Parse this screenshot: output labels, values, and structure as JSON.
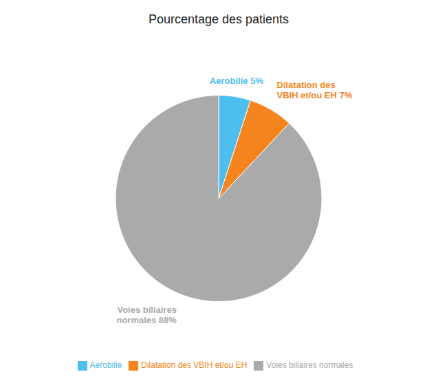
{
  "chart_data": {
    "type": "pie",
    "title": "Pourcentage des patients",
    "categories": [
      "Aerobilie",
      "Dilatation des VBIH et/ou EH",
      "Voies biliaires normales"
    ],
    "values": [
      5,
      7,
      88
    ],
    "colors": [
      "#4DBEEE",
      "#F5841F",
      "#AAAAAA"
    ],
    "data_labels": true,
    "value_labels": [
      "Aerobilie 5%",
      "Dilatation des\nVBIH et/ou EH 7%",
      "Voies biliaires\nnormales 88%"
    ],
    "legend": "bottom"
  }
}
